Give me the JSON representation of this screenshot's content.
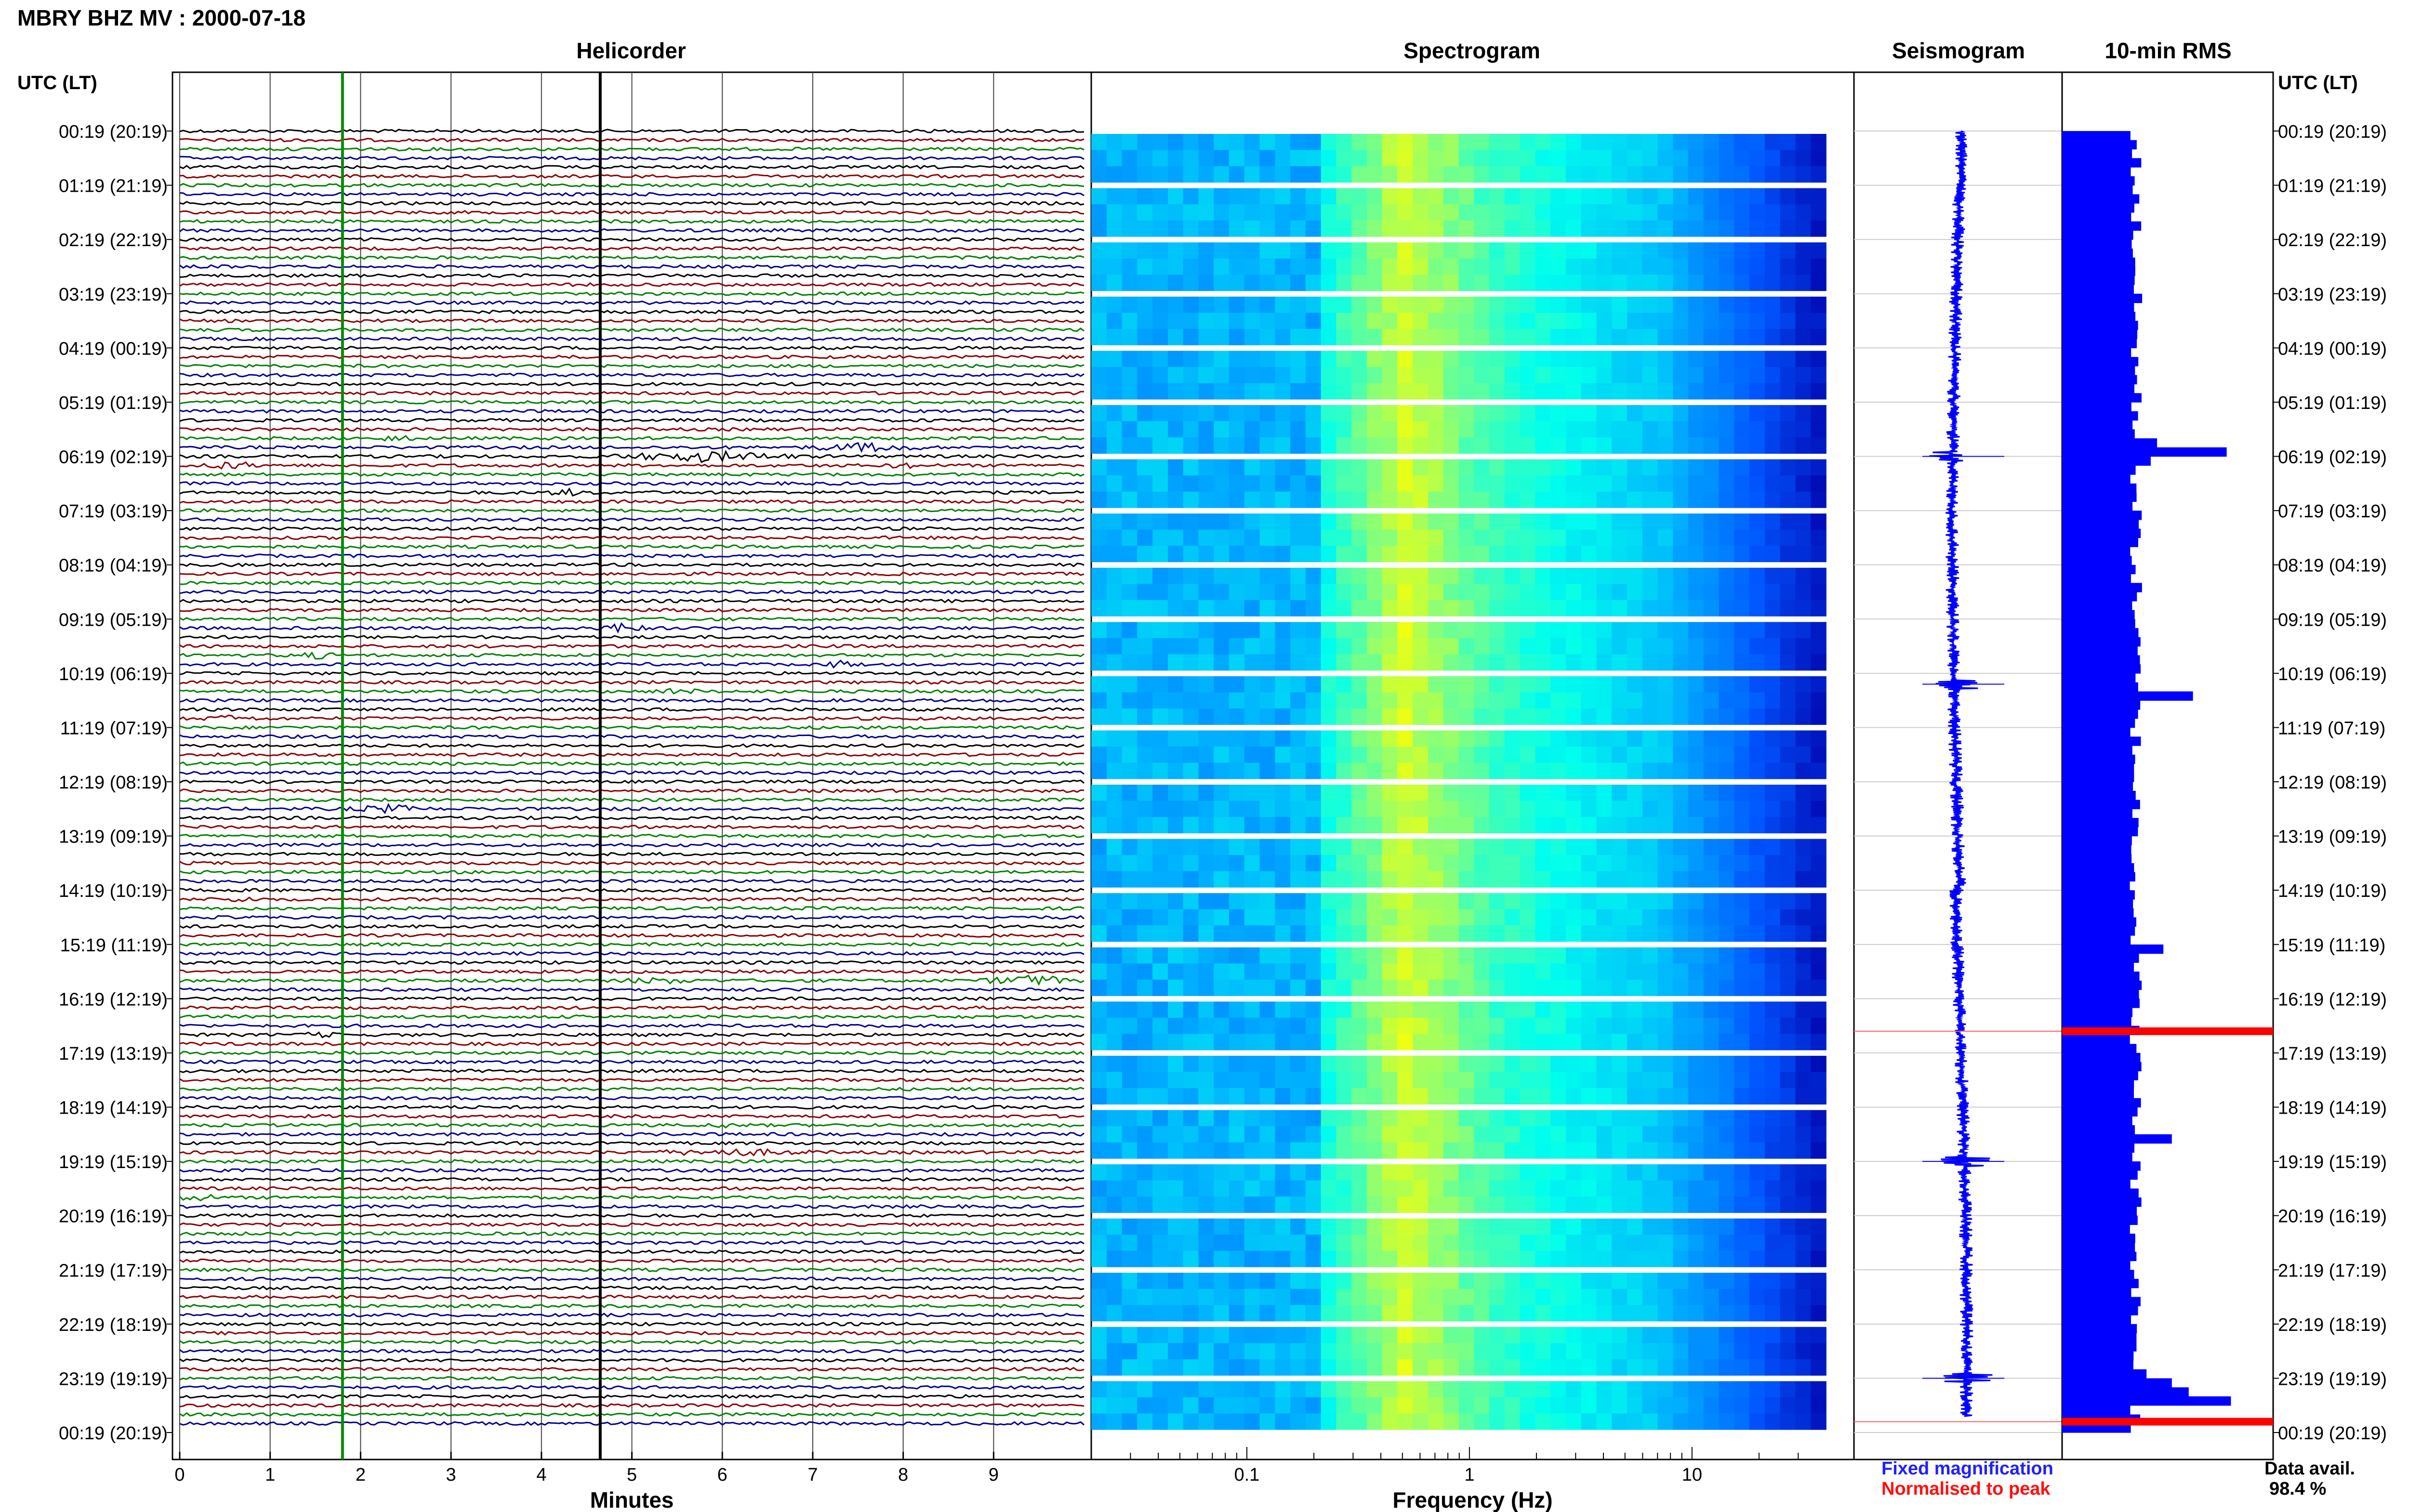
{
  "title": "MBRY BHZ MV : 2000-07-18",
  "panels": {
    "helicorder": "Helicorder",
    "spectrogram": "Spectrogram",
    "seismogram": "Seismogram",
    "rms": "10-min RMS"
  },
  "time_axis_label": "UTC (LT)",
  "time_labels": [
    "00:19 (20:19)",
    "01:19 (21:19)",
    "02:19 (22:19)",
    "03:19 (23:19)",
    "04:19 (00:19)",
    "05:19 (01:19)",
    "06:19 (02:19)",
    "07:19 (03:19)",
    "08:19 (04:19)",
    "09:19 (05:19)",
    "10:19 (06:19)",
    "11:19 (07:19)",
    "12:19 (08:19)",
    "13:19 (09:19)",
    "14:19 (10:19)",
    "15:19 (11:19)",
    "16:19 (12:19)",
    "17:19 (13:19)",
    "18:19 (14:19)",
    "19:19 (15:19)",
    "20:19 (16:19)",
    "21:19 (17:19)",
    "22:19 (18:19)",
    "23:19 (19:19)",
    "00:19 (20:19)"
  ],
  "legend": {
    "fixed": "Fixed magnification",
    "fixed_color": "#1f1fff",
    "normalised": "Normalised to peak",
    "normalised_color": "#ff1010"
  },
  "data_availability": {
    "label": "Data avail.",
    "value": "98.4 %"
  },
  "colors": {
    "trace_cycle": [
      "#000000",
      "#8b0000",
      "#008000",
      "#00008b"
    ],
    "marker_green": "#0a8a0a",
    "marker_black": "#000000",
    "rms_bar": "#0000ff",
    "rms_peak": "#ff0000"
  },
  "chart_data": [
    {
      "type": "line",
      "name": "helicorder",
      "xlabel": "Minutes",
      "x_ticks": [
        0,
        1,
        2,
        3,
        4,
        5,
        6,
        7,
        8,
        9
      ],
      "xlim": [
        0,
        10
      ],
      "rows": 144,
      "row_minutes": 10,
      "markers_minutes": [
        1.8,
        4.65
      ],
      "events": [
        {
          "row": 34,
          "start": 2.2,
          "end": 2.6,
          "amp": 2.0
        },
        {
          "row": 35,
          "start": 6.8,
          "end": 8.4,
          "amp": 2.2
        },
        {
          "row": 36,
          "start": 4.6,
          "end": 7.0,
          "amp": 2.8
        },
        {
          "row": 37,
          "start": 0.1,
          "end": 1.0,
          "amp": 1.8
        },
        {
          "row": 37,
          "start": 7.8,
          "end": 8.2,
          "amp": 1.5
        },
        {
          "row": 40,
          "start": 4.0,
          "end": 4.6,
          "amp": 1.6
        },
        {
          "row": 55,
          "start": 4.6,
          "end": 5.2,
          "amp": 3.0
        },
        {
          "row": 58,
          "start": 1.2,
          "end": 1.8,
          "amp": 1.5
        },
        {
          "row": 59,
          "start": 7.0,
          "end": 7.6,
          "amp": 1.6
        },
        {
          "row": 62,
          "start": 5.2,
          "end": 5.8,
          "amp": 1.5
        },
        {
          "row": 65,
          "start": 0.2,
          "end": 0.9,
          "amp": 1.5
        },
        {
          "row": 75,
          "start": 1.8,
          "end": 2.8,
          "amp": 2.0
        },
        {
          "row": 85,
          "start": 0.4,
          "end": 0.9,
          "amp": 1.4
        },
        {
          "row": 94,
          "start": 8.8,
          "end": 10.0,
          "amp": 3.0
        },
        {
          "row": 94,
          "start": 4.8,
          "end": 5.8,
          "amp": 1.4
        },
        {
          "row": 100,
          "start": 1.3,
          "end": 1.8,
          "amp": 1.2
        },
        {
          "row": 110,
          "start": 5.8,
          "end": 6.2,
          "amp": 1.3
        },
        {
          "row": 113,
          "start": 5.0,
          "end": 7.2,
          "amp": 1.6
        },
        {
          "row": 118,
          "start": 0.0,
          "end": 0.4,
          "amp": 3.5
        }
      ]
    },
    {
      "type": "heatmap",
      "name": "spectrogram",
      "xlabel": "Frequency (Hz)",
      "x_scale": "log",
      "xlim": [
        0.02,
        40
      ],
      "x_tick_labels": [
        "0.1",
        "1",
        "10"
      ],
      "x_tick_values": [
        0.1,
        1,
        10
      ],
      "colormap": [
        "#0000aa",
        "#0055ff",
        "#00aaff",
        "#00ffee",
        "#80ff80",
        "#ffff00"
      ]
    },
    {
      "type": "line",
      "name": "seismogram",
      "spike_rows_hours": [
        6.0,
        10.2,
        19.0,
        23.0
      ]
    },
    {
      "type": "bar",
      "name": "10-min RMS",
      "orientation": "horizontal",
      "bins": 144,
      "baseline_rel": 0.35,
      "spikes": [
        {
          "bin": 34,
          "rel": 0.45
        },
        {
          "bin": 35,
          "rel": 0.78
        },
        {
          "bin": 36,
          "rel": 0.42
        },
        {
          "bin": 62,
          "rel": 0.62
        },
        {
          "bin": 90,
          "rel": 0.48
        },
        {
          "bin": 111,
          "rel": 0.52
        },
        {
          "bin": 137,
          "rel": 0.4
        },
        {
          "bin": 138,
          "rel": 0.52
        },
        {
          "bin": 139,
          "rel": 0.6
        },
        {
          "bin": 140,
          "rel": 0.8
        }
      ],
      "peak_markers_hours": [
        16.6,
        23.8
      ]
    }
  ]
}
